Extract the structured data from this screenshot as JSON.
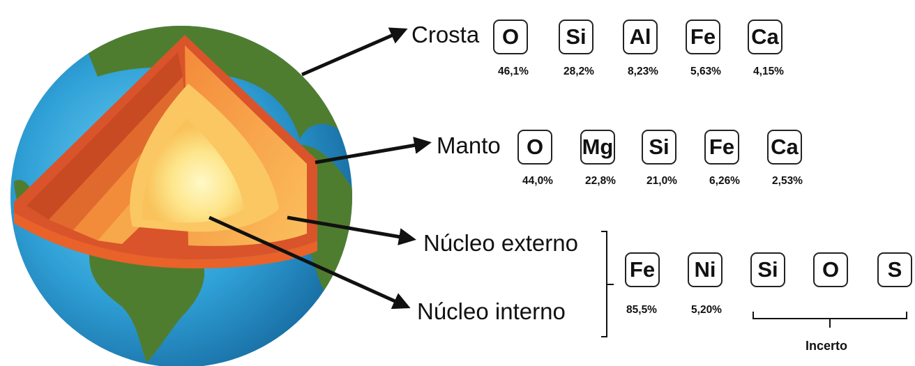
{
  "layers": {
    "crust": {
      "label": "Crosta",
      "elements": [
        {
          "symbol": "O",
          "percent": "46,1%"
        },
        {
          "symbol": "Si",
          "percent": "28,2%"
        },
        {
          "symbol": "Al",
          "percent": "8,23%"
        },
        {
          "symbol": "Fe",
          "percent": "5,63%"
        },
        {
          "symbol": "Ca",
          "percent": "4,15%"
        }
      ]
    },
    "mantle": {
      "label": "Manto",
      "elements": [
        {
          "symbol": "O",
          "percent": "44,0%"
        },
        {
          "symbol": "Mg",
          "percent": "22,8%"
        },
        {
          "symbol": "Si",
          "percent": "21,0%"
        },
        {
          "symbol": "Fe",
          "percent": "6,26%"
        },
        {
          "symbol": "Ca",
          "percent": "2,53%"
        }
      ]
    },
    "core": {
      "outer_label": "Núcleo externo",
      "inner_label": "Núcleo interno",
      "elements": [
        {
          "symbol": "Fe",
          "percent": "85,5%"
        },
        {
          "symbol": "Ni",
          "percent": "5,20%"
        },
        {
          "symbol": "Si",
          "percent": ""
        },
        {
          "symbol": "O",
          "percent": ""
        },
        {
          "symbol": "S",
          "percent": ""
        }
      ],
      "uncertain_label": "Incerto"
    }
  },
  "colors": {
    "ocean": "#3aa3d8",
    "land": "#4a7a32",
    "crust_layer": "#e8622a",
    "mantle_layer": "#f7a84a",
    "outer_core": "#fcd773",
    "inner_core": "#fff4b0"
  }
}
